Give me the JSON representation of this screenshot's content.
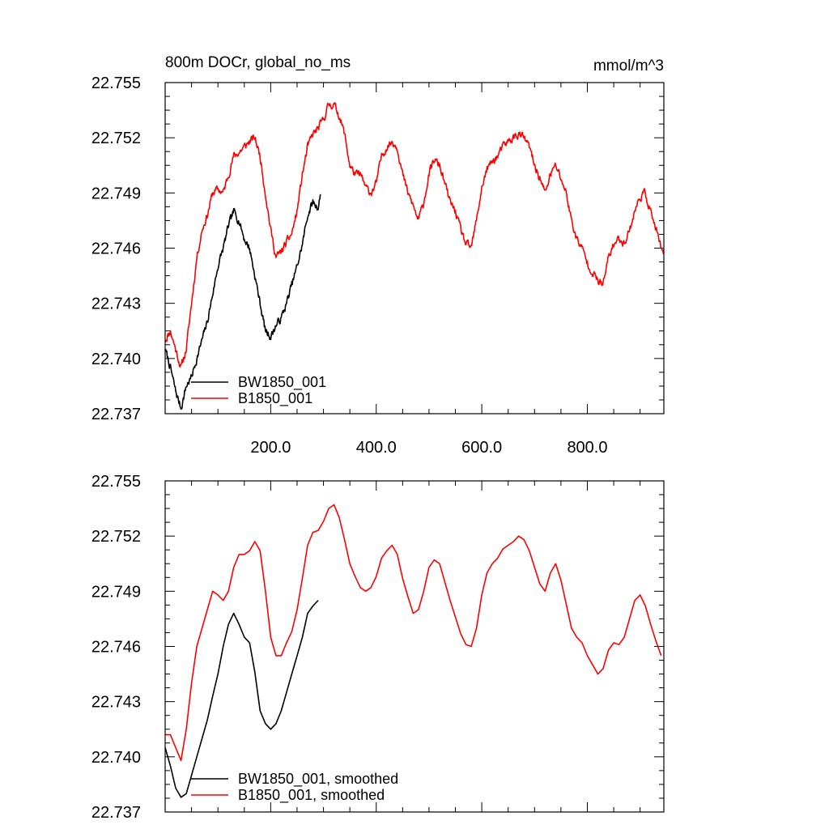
{
  "chart_data": [
    {
      "type": "line",
      "title_left": "800m DOCr, global_no_ms",
      "title_right": "mmol/m^3",
      "xlim": [
        0,
        945
      ],
      "ylim": [
        22.737,
        22.755
      ],
      "x_ticks": [
        200,
        400,
        600,
        800
      ],
      "x_tick_labels": [
        "200.0",
        "400.0",
        "600.0",
        "800.0"
      ],
      "y_ticks": [
        22.737,
        22.74,
        22.743,
        22.746,
        22.749,
        22.752,
        22.755
      ],
      "y_tick_labels": [
        "22.737",
        "22.740",
        "22.743",
        "22.746",
        "22.749",
        "22.752",
        "22.755"
      ],
      "grid": false,
      "legend_position": "bottom-left",
      "series": [
        {
          "name": "BW1850_001",
          "color": "#000000",
          "noise": 0.00035,
          "seed": 7,
          "x": [
            0,
            10,
            20,
            30,
            40,
            50,
            60,
            70,
            80,
            90,
            100,
            110,
            120,
            130,
            140,
            150,
            160,
            170,
            180,
            190,
            200,
            210,
            220,
            230,
            240,
            250,
            260,
            270,
            280,
            290,
            295
          ],
          "y": [
            22.7405,
            22.7395,
            22.7382,
            22.7373,
            22.7385,
            22.739,
            22.74,
            22.741,
            22.742,
            22.7435,
            22.745,
            22.746,
            22.7472,
            22.748,
            22.7475,
            22.7465,
            22.746,
            22.7445,
            22.743,
            22.7415,
            22.7412,
            22.7418,
            22.7422,
            22.743,
            22.744,
            22.745,
            22.7462,
            22.7478,
            22.7485,
            22.7482,
            22.749
          ]
        },
        {
          "name": "B1850_001",
          "color": "#ff0000",
          "noise": 0.00035,
          "seed": 11,
          "x": [
            0,
            10,
            20,
            30,
            40,
            50,
            60,
            70,
            80,
            90,
            100,
            110,
            120,
            130,
            140,
            150,
            160,
            170,
            180,
            190,
            200,
            210,
            220,
            230,
            240,
            250,
            260,
            270,
            280,
            290,
            300,
            310,
            320,
            330,
            340,
            350,
            360,
            370,
            380,
            390,
            400,
            410,
            420,
            430,
            440,
            450,
            460,
            470,
            480,
            490,
            500,
            510,
            520,
            530,
            540,
            550,
            560,
            570,
            580,
            590,
            600,
            610,
            620,
            630,
            640,
            650,
            660,
            670,
            680,
            690,
            700,
            710,
            720,
            730,
            740,
            750,
            760,
            770,
            780,
            790,
            800,
            810,
            820,
            830,
            840,
            850,
            860,
            870,
            880,
            890,
            900,
            910,
            920,
            930,
            940,
            945
          ],
          "y": [
            22.741,
            22.7415,
            22.7405,
            22.7395,
            22.7405,
            22.743,
            22.7455,
            22.747,
            22.7478,
            22.749,
            22.7492,
            22.749,
            22.75,
            22.751,
            22.7512,
            22.7515,
            22.7518,
            22.752,
            22.751,
            22.749,
            22.747,
            22.7455,
            22.7458,
            22.7463,
            22.7468,
            22.748,
            22.75,
            22.7515,
            22.7522,
            22.7525,
            22.753,
            22.7538,
            22.7538,
            22.7532,
            22.7522,
            22.7505,
            22.75,
            22.75,
            22.7493,
            22.749,
            22.7495,
            22.751,
            22.7515,
            22.7518,
            22.7515,
            22.75,
            22.749,
            22.7483,
            22.7475,
            22.7485,
            22.75,
            22.7508,
            22.7505,
            22.7495,
            22.7485,
            22.748,
            22.747,
            22.7462,
            22.746,
            22.7475,
            22.7493,
            22.7503,
            22.7507,
            22.751,
            22.7515,
            22.7518,
            22.752,
            22.7522,
            22.752,
            22.7515,
            22.7505,
            22.7498,
            22.749,
            22.75,
            22.7505,
            22.7498,
            22.749,
            22.7475,
            22.7465,
            22.746,
            22.7452,
            22.7447,
            22.7442,
            22.744,
            22.7455,
            22.7462,
            22.7465,
            22.7463,
            22.747,
            22.748,
            22.7488,
            22.749,
            22.748,
            22.747,
            22.746,
            22.7455
          ]
        }
      ]
    },
    {
      "type": "line",
      "xlim": [
        0,
        945
      ],
      "ylim": [
        22.737,
        22.755
      ],
      "y_ticks": [
        22.737,
        22.74,
        22.743,
        22.746,
        22.749,
        22.752,
        22.755
      ],
      "y_tick_labels": [
        "22.737",
        "22.740",
        "22.743",
        "22.746",
        "22.749",
        "22.752",
        "22.755"
      ],
      "grid": false,
      "legend_position": "bottom-left",
      "series": [
        {
          "name": "BW1850_001, smoothed",
          "color": "#000000",
          "x": [
            0,
            10,
            20,
            30,
            40,
            50,
            60,
            70,
            80,
            90,
            100,
            110,
            120,
            130,
            140,
            150,
            160,
            170,
            180,
            190,
            200,
            210,
            220,
            230,
            240,
            250,
            260,
            270,
            280,
            290
          ],
          "y": [
            22.7405,
            22.7395,
            22.7383,
            22.7378,
            22.738,
            22.739,
            22.74,
            22.741,
            22.742,
            22.7433,
            22.7445,
            22.746,
            22.7472,
            22.7478,
            22.7472,
            22.7465,
            22.7462,
            22.7446,
            22.7425,
            22.7418,
            22.7415,
            22.7418,
            22.7425,
            22.7435,
            22.7445,
            22.7455,
            22.7465,
            22.7478,
            22.7482,
            22.7485
          ]
        },
        {
          "name": "B1850_001, smoothed",
          "color": "#ff0000",
          "x": [
            0,
            10,
            20,
            30,
            40,
            50,
            60,
            70,
            80,
            90,
            100,
            110,
            120,
            130,
            140,
            150,
            160,
            170,
            180,
            190,
            200,
            210,
            220,
            230,
            240,
            250,
            260,
            270,
            280,
            290,
            300,
            310,
            320,
            330,
            340,
            350,
            360,
            370,
            380,
            390,
            400,
            410,
            420,
            430,
            440,
            450,
            460,
            470,
            480,
            490,
            500,
            510,
            520,
            530,
            540,
            550,
            560,
            570,
            580,
            590,
            600,
            610,
            620,
            630,
            640,
            650,
            660,
            670,
            680,
            690,
            700,
            710,
            720,
            730,
            740,
            750,
            760,
            770,
            780,
            790,
            800,
            810,
            820,
            830,
            840,
            850,
            860,
            870,
            880,
            890,
            900,
            910,
            920,
            930,
            940
          ],
          "y": [
            22.7412,
            22.7412,
            22.7405,
            22.7398,
            22.7415,
            22.744,
            22.746,
            22.747,
            22.748,
            22.749,
            22.7488,
            22.7485,
            22.749,
            22.7503,
            22.751,
            22.751,
            22.7512,
            22.7517,
            22.7512,
            22.749,
            22.7465,
            22.7455,
            22.7455,
            22.7462,
            22.7468,
            22.748,
            22.7497,
            22.7515,
            22.7522,
            22.7523,
            22.7528,
            22.7535,
            22.7537,
            22.753,
            22.7518,
            22.7505,
            22.7498,
            22.7492,
            22.749,
            22.7492,
            22.7498,
            22.7508,
            22.7512,
            22.7515,
            22.751,
            22.7497,
            22.7487,
            22.7478,
            22.748,
            22.749,
            22.7503,
            22.7507,
            22.7505,
            22.7495,
            22.7485,
            22.7476,
            22.7467,
            22.7461,
            22.746,
            22.747,
            22.7488,
            22.75,
            22.7505,
            22.7508,
            22.7513,
            22.7515,
            22.7517,
            22.752,
            22.7518,
            22.7512,
            22.7503,
            22.7494,
            22.749,
            22.75,
            22.7505,
            22.7496,
            22.7483,
            22.747,
            22.7465,
            22.7462,
            22.7455,
            22.745,
            22.7445,
            22.7448,
            22.7458,
            22.7462,
            22.7461,
            22.7465,
            22.7475,
            22.7485,
            22.7488,
            22.7482,
            22.7472,
            22.7463,
            22.7455
          ]
        }
      ]
    }
  ]
}
